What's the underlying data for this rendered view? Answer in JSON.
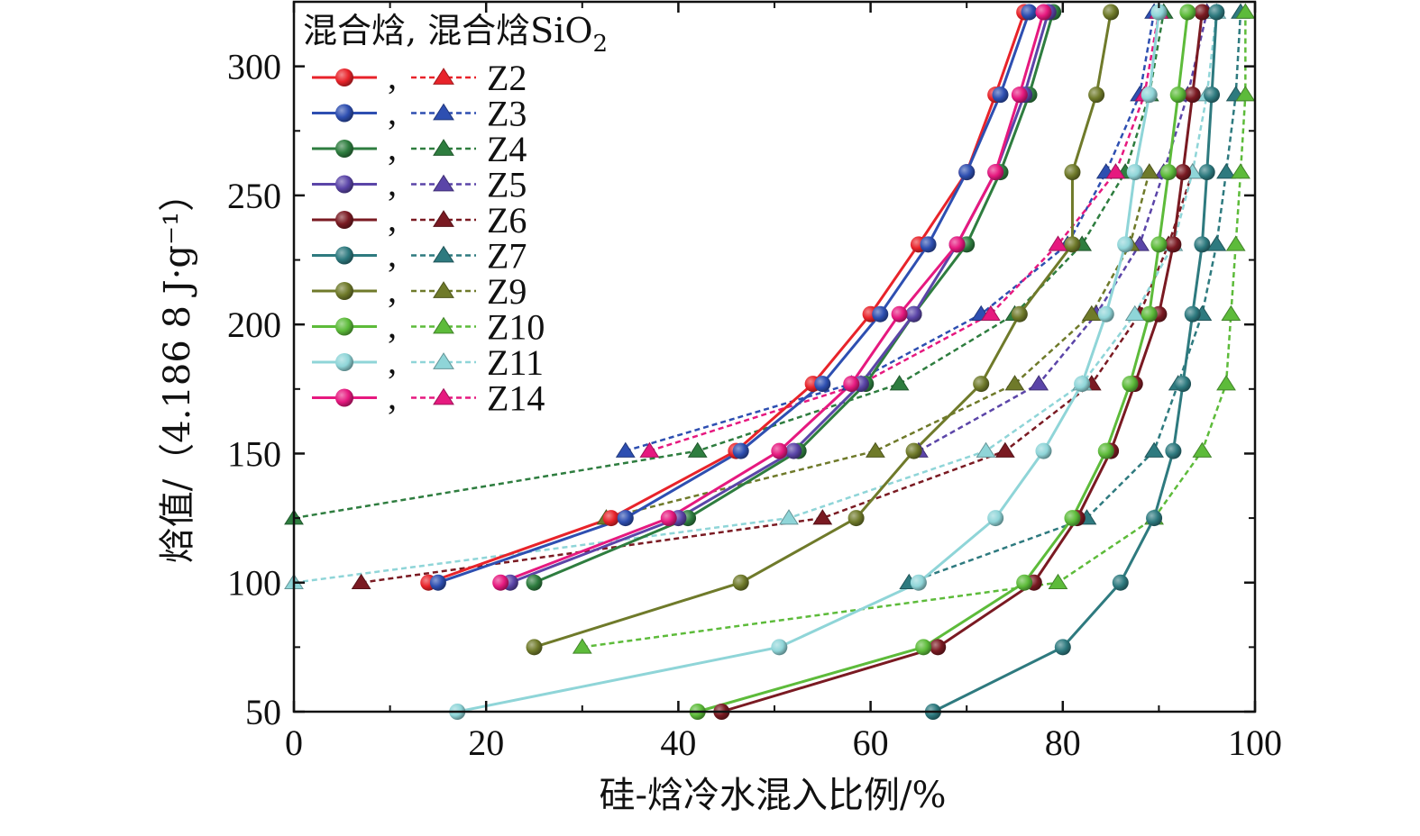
{
  "chart_data": {
    "type": "line",
    "xlabel": "硅-焓冷水混入比例/%",
    "ylabel": "焓值/（4.186 8 J·g⁻¹）",
    "xlim": [
      0,
      100
    ],
    "ylim": [
      50,
      325
    ],
    "x_ticks": [
      0,
      20,
      40,
      60,
      80,
      100
    ],
    "y_ticks": [
      50,
      100,
      150,
      200,
      250,
      300
    ],
    "x_tick_labels": [
      "0",
      "20",
      "40",
      "60",
      "80",
      "100"
    ],
    "y_tick_labels": [
      "50",
      "100",
      "150",
      "200",
      "250",
      "300"
    ],
    "legend": {
      "placement": "top-left",
      "header_part1": "混合焓, 混合焓SiO",
      "header_sub": "2",
      "separator": ","
    },
    "groups": [
      {
        "name": "Z2",
        "color": "#e8232a",
        "marker": "ball",
        "solid": [
          [
            14,
            100
          ],
          [
            33,
            125
          ],
          [
            46,
            151
          ],
          [
            54,
            177
          ],
          [
            60,
            204
          ],
          [
            65,
            231
          ],
          [
            70,
            259
          ],
          [
            73,
            289
          ],
          [
            76,
            321
          ]
        ],
        "dashed": []
      },
      {
        "name": "Z3",
        "color": "#2e4fb1",
        "marker": "ball",
        "solid": [
          [
            15,
            100
          ],
          [
            34.5,
            125
          ],
          [
            46.5,
            151
          ],
          [
            55,
            177
          ],
          [
            61,
            204
          ],
          [
            66,
            231
          ],
          [
            70,
            259
          ],
          [
            73.5,
            289
          ],
          [
            76.5,
            321
          ]
        ],
        "dashed": [
          [
            34.5,
            151
          ],
          [
            58,
            177
          ],
          [
            71.5,
            204
          ],
          [
            80.5,
            231
          ],
          [
            84.5,
            259
          ],
          [
            88,
            289
          ],
          [
            89.5,
            321
          ]
        ]
      },
      {
        "name": "Z4",
        "color": "#2e7d3f",
        "marker": "ball",
        "solid": [
          [
            25,
            100
          ],
          [
            41,
            125
          ],
          [
            52.5,
            151
          ],
          [
            59.5,
            177
          ],
          [
            64.5,
            204
          ],
          [
            70,
            231
          ],
          [
            73.5,
            259
          ],
          [
            76.5,
            289
          ],
          [
            79,
            321
          ]
        ],
        "dashed": [
          [
            0,
            125
          ],
          [
            42,
            151
          ],
          [
            63,
            177
          ],
          [
            75,
            204
          ],
          [
            82,
            231
          ],
          [
            86.5,
            259
          ],
          [
            89,
            289
          ],
          [
            90.5,
            321
          ]
        ]
      },
      {
        "name": "Z5",
        "color": "#5b45a8",
        "marker": "ball",
        "solid": [
          [
            22.5,
            100
          ],
          [
            40,
            125
          ],
          [
            52,
            151
          ],
          [
            59,
            177
          ],
          [
            64.5,
            204
          ],
          [
            69,
            231
          ],
          [
            73,
            259
          ],
          [
            76,
            289
          ],
          [
            78.5,
            321
          ]
        ],
        "dashed": [
          [
            65,
            151
          ],
          [
            77.5,
            177
          ],
          [
            83.5,
            204
          ],
          [
            88,
            231
          ],
          [
            90.5,
            259
          ],
          [
            93,
            289
          ],
          [
            95,
            321
          ]
        ]
      },
      {
        "name": "Z6",
        "color": "#7a1a22",
        "marker": "ball",
        "solid": [
          [
            44.5,
            50
          ],
          [
            67,
            75
          ],
          [
            77,
            100
          ],
          [
            81.5,
            125
          ],
          [
            85,
            151
          ],
          [
            87.5,
            177
          ],
          [
            90,
            204
          ],
          [
            91.5,
            231
          ],
          [
            92.5,
            259
          ],
          [
            93.5,
            289
          ],
          [
            94.5,
            321
          ]
        ],
        "dashed": [
          [
            7,
            100
          ],
          [
            55,
            125
          ],
          [
            74,
            151
          ],
          [
            83,
            177
          ],
          [
            88,
            204
          ],
          [
            91,
            231
          ],
          [
            93.5,
            259
          ]
        ]
      },
      {
        "name": "Z7",
        "color": "#2e7a7f",
        "marker": "ball",
        "solid": [
          [
            66.5,
            50
          ],
          [
            80,
            75
          ],
          [
            86,
            100
          ],
          [
            89.5,
            125
          ],
          [
            91.5,
            151
          ],
          [
            92.5,
            177
          ],
          [
            93.5,
            204
          ],
          [
            94.5,
            231
          ],
          [
            95,
            259
          ],
          [
            95.5,
            289
          ],
          [
            96,
            321
          ]
        ],
        "dashed": [
          [
            64,
            100
          ],
          [
            82.5,
            125
          ],
          [
            89.5,
            151
          ],
          [
            92,
            177
          ],
          [
            94.5,
            204
          ],
          [
            96,
            231
          ],
          [
            97,
            259
          ],
          [
            98,
            289
          ],
          [
            98.5,
            321
          ]
        ]
      },
      {
        "name": "Z9",
        "color": "#6f7a2a",
        "marker": "ball",
        "solid": [
          [
            25,
            75
          ],
          [
            46.5,
            100
          ],
          [
            58.5,
            125
          ],
          [
            64.5,
            151
          ],
          [
            71.5,
            177
          ],
          [
            75.5,
            204
          ],
          [
            81,
            231
          ],
          [
            81,
            259
          ],
          [
            83.5,
            289
          ],
          [
            85,
            321
          ]
        ],
        "dashed": [
          [
            32.5,
            125
          ],
          [
            60.5,
            151
          ],
          [
            75,
            177
          ],
          [
            83,
            204
          ],
          [
            87,
            231
          ],
          [
            89,
            259
          ]
        ]
      },
      {
        "name": "Z10",
        "color": "#5dbb3a",
        "marker": "ball",
        "solid": [
          [
            42,
            50
          ],
          [
            65.5,
            75
          ],
          [
            76,
            100
          ],
          [
            81,
            125
          ],
          [
            84.5,
            151
          ],
          [
            87,
            177
          ],
          [
            89,
            204
          ],
          [
            90,
            231
          ],
          [
            91,
            259
          ],
          [
            92,
            289
          ],
          [
            93,
            321
          ]
        ],
        "dashed": [
          [
            30,
            75
          ],
          [
            79.5,
            100
          ],
          [
            89.5,
            125
          ],
          [
            94.5,
            151
          ],
          [
            97,
            177
          ],
          [
            97.5,
            204
          ],
          [
            98,
            231
          ],
          [
            98.5,
            259
          ],
          [
            99,
            289
          ],
          [
            99,
            321
          ]
        ]
      },
      {
        "name": "Z11",
        "color": "#8fd5d8",
        "marker": "ball",
        "solid": [
          [
            17,
            50
          ],
          [
            50.5,
            75
          ],
          [
            65,
            100
          ],
          [
            73,
            125
          ],
          [
            78,
            151
          ],
          [
            82,
            177
          ],
          [
            84.5,
            204
          ],
          [
            86.5,
            231
          ],
          [
            87.5,
            259
          ],
          [
            89,
            289
          ],
          [
            90,
            321
          ]
        ],
        "dashed": [
          [
            0,
            100
          ],
          [
            51.5,
            125
          ],
          [
            72,
            151
          ],
          [
            82,
            177
          ],
          [
            87.5,
            204
          ],
          [
            91.5,
            231
          ],
          [
            93.5,
            259
          ],
          [
            95,
            289
          ],
          [
            96,
            321
          ]
        ]
      },
      {
        "name": "Z14",
        "color": "#e6197f",
        "marker": "ball",
        "solid": [
          [
            21.5,
            100
          ],
          [
            39,
            125
          ],
          [
            50.5,
            151
          ],
          [
            58,
            177
          ],
          [
            63,
            204
          ],
          [
            69,
            231
          ],
          [
            73,
            259
          ],
          [
            75.5,
            289
          ],
          [
            78,
            321
          ]
        ],
        "dashed": [
          [
            37,
            151
          ],
          [
            59,
            177
          ],
          [
            72.5,
            204
          ],
          [
            79.5,
            231
          ],
          [
            85.5,
            259
          ],
          [
            88.5,
            289
          ],
          [
            90,
            321
          ]
        ]
      }
    ]
  }
}
